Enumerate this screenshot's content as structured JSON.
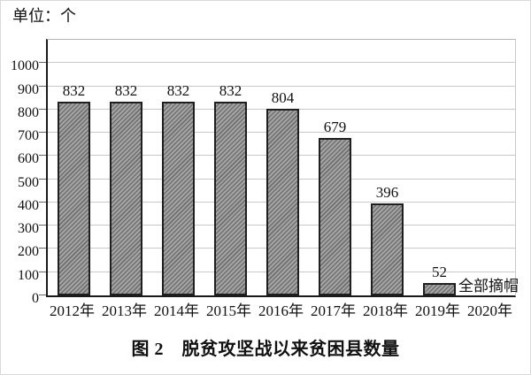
{
  "chart_data": {
    "type": "bar",
    "title": "图 2　脱贫攻坚战以来贫困县数量",
    "unit_label": "单位：个",
    "categories": [
      "2012年",
      "2013年",
      "2014年",
      "2015年",
      "2016年",
      "2017年",
      "2018年",
      "2019年",
      "2020年"
    ],
    "values": [
      832,
      832,
      832,
      832,
      804,
      679,
      396,
      52,
      null
    ],
    "data_labels": [
      "832",
      "832",
      "832",
      "832",
      "804",
      "679",
      "396",
      "52",
      ""
    ],
    "annotation": {
      "text": "全部摘帽",
      "category": "2020年"
    },
    "ylim": [
      0,
      1100
    ],
    "yticks": [
      0,
      100,
      200,
      300,
      400,
      500,
      600,
      700,
      800,
      900,
      1000
    ],
    "grid": "horizontal",
    "legend": "none",
    "xlabel": "",
    "ylabel": "",
    "colors": {
      "bar_fill": "#a4a4a4",
      "bar_hatch_line": "#6f6f6f",
      "bar_border": "#1f1f1f",
      "gridline": "#c9c9c9",
      "axis": "#1a1a1a",
      "text": "#111111"
    }
  }
}
